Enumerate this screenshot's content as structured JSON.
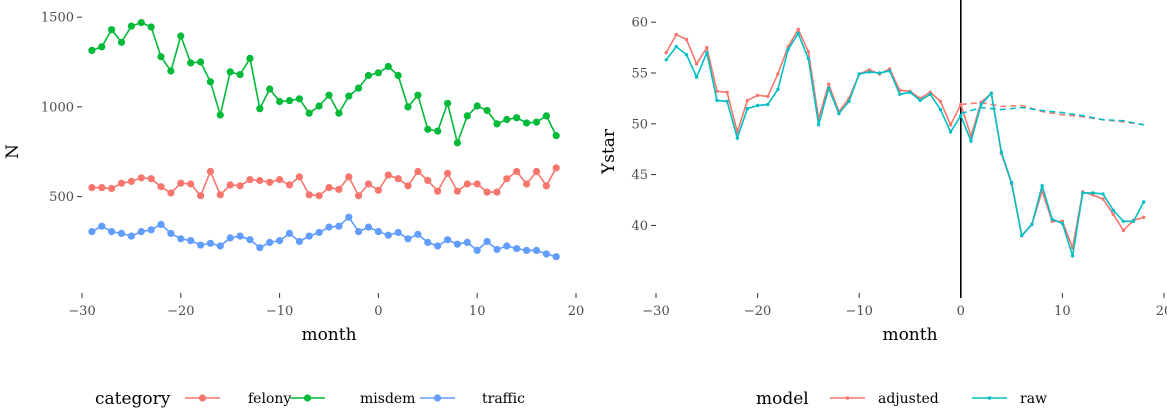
{
  "chart_data": [
    {
      "type": "line",
      "xlabel": "month",
      "ylabel": "N",
      "xlim": [
        -30,
        20
      ],
      "ylim": [
        130,
        1540
      ],
      "xticks": [
        "−30",
        "−20",
        "−10",
        "0",
        "10",
        "20"
      ],
      "xtick_values": [
        -30,
        -20,
        -10,
        0,
        10,
        20
      ],
      "yticks": [
        "500",
        "1000",
        "1500"
      ],
      "ytick_values": [
        500,
        1000,
        1500
      ],
      "legend_title": "category",
      "legend_position": "bottom",
      "markers": true,
      "x": [
        -29,
        -28,
        -27,
        -26,
        -25,
        -24,
        -23,
        -22,
        -21,
        -20,
        -19,
        -18,
        -17,
        -16,
        -15,
        -14,
        -13,
        -12,
        -11,
        -10,
        -9,
        -8,
        -7,
        -6,
        -5,
        -4,
        -3,
        -2,
        -1,
        0,
        1,
        2,
        3,
        4,
        5,
        6,
        7,
        8,
        9,
        10,
        11,
        12,
        13,
        14,
        15,
        16,
        17,
        18
      ],
      "series": [
        {
          "name": "felony",
          "color": "#F8766D",
          "values": [
            550,
            550,
            545,
            575,
            585,
            605,
            600,
            555,
            520,
            575,
            570,
            505,
            640,
            510,
            565,
            560,
            595,
            590,
            580,
            595,
            565,
            610,
            510,
            505,
            550,
            540,
            610,
            505,
            570,
            535,
            620,
            600,
            560,
            640,
            590,
            530,
            630,
            530,
            570,
            570,
            525,
            525,
            600,
            640,
            570,
            640,
            560,
            660
          ]
        },
        {
          "name": "misdem",
          "color": "#00BA38",
          "values": [
            1315,
            1335,
            1430,
            1360,
            1450,
            1470,
            1445,
            1280,
            1200,
            1395,
            1245,
            1250,
            1140,
            955,
            1195,
            1180,
            1270,
            990,
            1100,
            1030,
            1035,
            1045,
            965,
            1005,
            1065,
            965,
            1060,
            1105,
            1175,
            1190,
            1225,
            1175,
            1000,
            1065,
            875,
            865,
            1020,
            800,
            950,
            1005,
            980,
            905,
            930,
            940,
            910,
            915,
            950,
            840
          ]
        },
        {
          "name": "traffic",
          "color": "#619CFF",
          "values": [
            305,
            335,
            305,
            295,
            280,
            305,
            315,
            345,
            295,
            265,
            255,
            230,
            240,
            225,
            270,
            280,
            260,
            215,
            245,
            255,
            295,
            250,
            280,
            300,
            330,
            335,
            385,
            305,
            330,
            305,
            285,
            300,
            265,
            290,
            245,
            225,
            260,
            235,
            245,
            200,
            250,
            205,
            225,
            210,
            200,
            200,
            180,
            165
          ]
        }
      ]
    },
    {
      "type": "line",
      "xlabel": "month",
      "ylabel": "Ystar",
      "xlim": [
        -30,
        20
      ],
      "ylim": [
        36.3,
        61.2
      ],
      "xticks": [
        "−30",
        "−20",
        "−10",
        "0",
        "10",
        "20"
      ],
      "xtick_values": [
        -30,
        -20,
        -10,
        0,
        10,
        20
      ],
      "yticks": [
        "40",
        "45",
        "50",
        "55",
        "60"
      ],
      "ytick_values": [
        40,
        45,
        50,
        55,
        60
      ],
      "vline_x": 0,
      "legend_title": "model",
      "legend_position": "bottom",
      "x": [
        -29,
        -28,
        -27,
        -26,
        -25,
        -24,
        -23,
        -22,
        -21,
        -20,
        -19,
        -18,
        -17,
        -16,
        -15,
        -14,
        -13,
        -12,
        -11,
        -10,
        -9,
        -8,
        -7,
        -6,
        -5,
        -4,
        -3,
        -2,
        -1,
        0,
        1,
        2,
        3,
        4,
        5,
        6,
        7,
        8,
        9,
        10,
        11,
        12,
        13,
        14,
        15,
        16,
        17,
        18
      ],
      "series": [
        {
          "name": "adjusted",
          "color": "#F8766D",
          "values": [
            57.0,
            58.8,
            58.3,
            55.9,
            57.5,
            53.2,
            53.1,
            49.2,
            52.3,
            52.8,
            52.7,
            54.9,
            57.6,
            59.3,
            57.1,
            50.5,
            53.9,
            51.2,
            52.5,
            54.9,
            55.3,
            54.9,
            55.4,
            53.3,
            53.2,
            52.5,
            53.1,
            52.2,
            49.9,
            51.9,
            48.8,
            52.1,
            53.0,
            47.1,
            44.1,
            39.0,
            40.1,
            43.4,
            40.4,
            40.4,
            37.8,
            43.3,
            43.0,
            42.6,
            41.1,
            39.5,
            40.5,
            40.8
          ],
          "dashed_x": [
            0,
            2,
            4,
            6,
            8,
            10,
            12,
            14,
            16,
            18
          ],
          "dashed_values": [
            51.9,
            52.1,
            51.7,
            51.8,
            51.2,
            50.9,
            50.7,
            50.4,
            50.2,
            49.9
          ]
        },
        {
          "name": "raw",
          "color": "#00BFC4",
          "values": [
            56.3,
            57.6,
            56.8,
            54.6,
            57.0,
            52.3,
            52.2,
            48.6,
            51.5,
            51.8,
            51.9,
            53.4,
            57.3,
            58.9,
            56.4,
            49.9,
            53.5,
            51.0,
            52.2,
            54.9,
            55.1,
            55.0,
            55.2,
            52.9,
            53.1,
            52.3,
            52.9,
            51.4,
            49.2,
            50.8,
            48.3,
            51.9,
            53.0,
            47.2,
            44.2,
            39.0,
            40.1,
            43.9,
            40.6,
            40.2,
            37.0,
            43.2,
            43.2,
            43.1,
            41.5,
            40.4,
            40.4,
            42.3
          ],
          "dashed_x": [
            0,
            2,
            4,
            6,
            8,
            10,
            12,
            14,
            16,
            18
          ],
          "dashed_values": [
            51.0,
            51.6,
            51.4,
            51.6,
            51.3,
            51.1,
            50.8,
            50.4,
            50.3,
            49.9
          ]
        }
      ]
    }
  ]
}
